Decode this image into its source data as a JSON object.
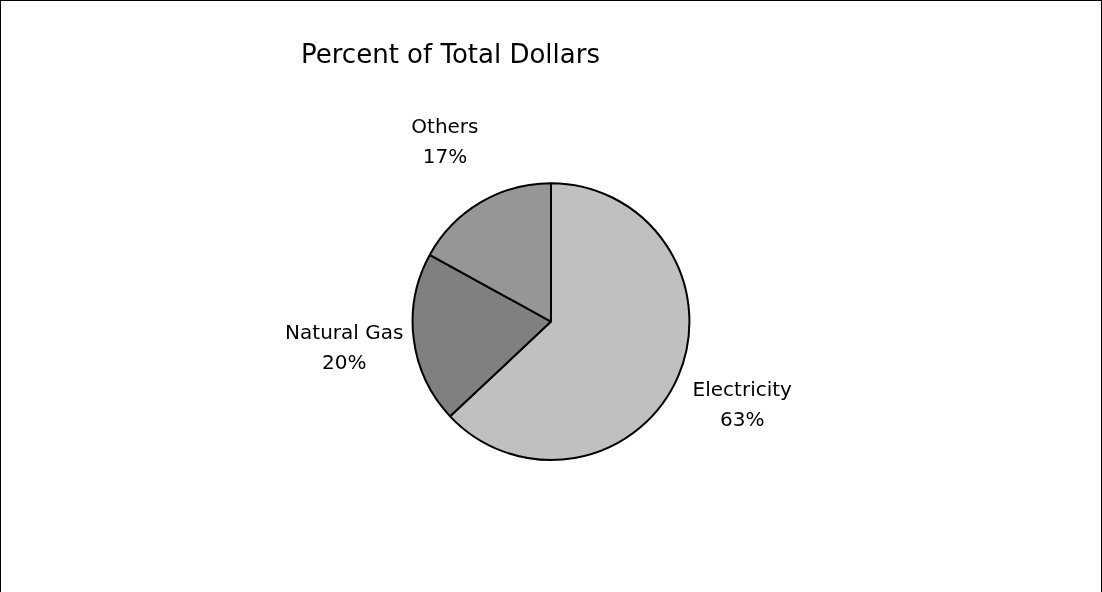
{
  "chart_data": {
    "type": "pie",
    "title": "Percent of Total Dollars",
    "categories": [
      "Electricity",
      "Natural Gas",
      "Others"
    ],
    "values": [
      63,
      20,
      17
    ],
    "colors": [
      "#c0c0c0",
      "#808080",
      "#969696"
    ],
    "value_labels": [
      "63%",
      "20%",
      "17%"
    ],
    "legend": false
  }
}
